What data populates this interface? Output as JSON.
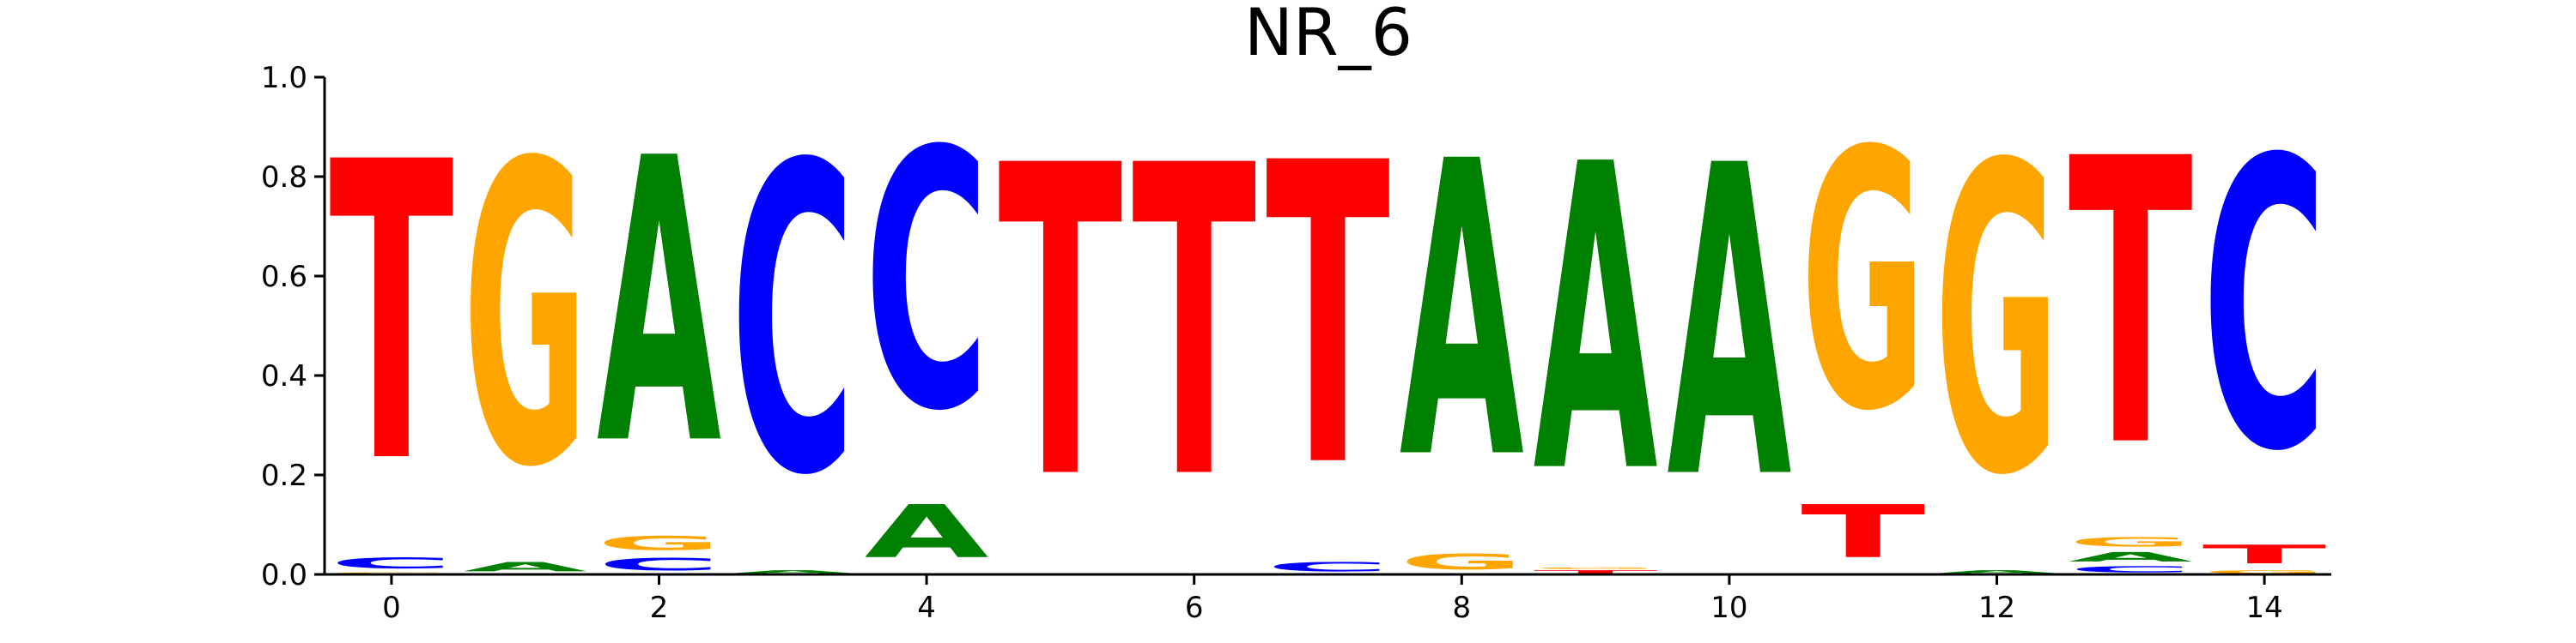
{
  "chart_data": {
    "type": "sequence-logo",
    "title": "NR_6",
    "xlabel": "",
    "ylabel": "",
    "xlim": [
      -0.5,
      14.5
    ],
    "ylim": [
      0,
      1
    ],
    "x_ticks": [
      0,
      2,
      4,
      6,
      8,
      10,
      12,
      14
    ],
    "y_ticks": [
      "0.0",
      "0.2",
      "0.4",
      "0.6",
      "0.8",
      "1.0"
    ],
    "grid": false,
    "legend": "none",
    "colors": {
      "A": "#008000",
      "C": "#0000ff",
      "G": "#ffa500",
      "T": "#ff0000"
    },
    "positions": [
      {
        "x": 0,
        "letters": [
          {
            "base": "G",
            "value": 0.005
          },
          {
            "base": "C",
            "value": 0.035
          },
          {
            "base": "T",
            "value": 0.96
          }
        ]
      },
      {
        "x": 1,
        "letters": [
          {
            "base": "A",
            "value": 0.03
          },
          {
            "base": "G",
            "value": 0.97
          }
        ]
      },
      {
        "x": 2,
        "letters": [
          {
            "base": "C",
            "value": 0.04
          },
          {
            "base": "G",
            "value": 0.045
          },
          {
            "base": "A",
            "value": 0.915
          }
        ]
      },
      {
        "x": 3,
        "letters": [
          {
            "base": "A",
            "value": 0.01
          },
          {
            "base": "C",
            "value": 0.99
          }
        ]
      },
      {
        "x": 4,
        "letters": [
          {
            "base": "A",
            "value": 0.17
          },
          {
            "base": "C",
            "value": 0.83
          }
        ]
      },
      {
        "x": 5,
        "letters": [
          {
            "base": "T",
            "value": 1.0
          }
        ]
      },
      {
        "x": 6,
        "letters": [
          {
            "base": "T",
            "value": 1.0
          }
        ]
      },
      {
        "x": 7,
        "letters": [
          {
            "base": "C",
            "value": 0.03
          },
          {
            "base": "T",
            "value": 0.97
          }
        ]
      },
      {
        "x": 8,
        "letters": [
          {
            "base": "G",
            "value": 0.05
          },
          {
            "base": "A",
            "value": 0.95
          }
        ]
      },
      {
        "x": 9,
        "letters": [
          {
            "base": "T",
            "value": 0.01
          },
          {
            "base": "G",
            "value": 0.005
          },
          {
            "base": "A",
            "value": 0.985
          }
        ]
      },
      {
        "x": 10,
        "letters": [
          {
            "base": "A",
            "value": 1.0
          }
        ]
      },
      {
        "x": 11,
        "letters": [
          {
            "base": "T",
            "value": 0.17
          },
          {
            "base": "G",
            "value": 0.83
          }
        ]
      },
      {
        "x": 12,
        "letters": [
          {
            "base": "A",
            "value": 0.01
          },
          {
            "base": "G",
            "value": 0.99
          }
        ]
      },
      {
        "x": 13,
        "letters": [
          {
            "base": "C",
            "value": 0.02
          },
          {
            "base": "A",
            "value": 0.03
          },
          {
            "base": "G",
            "value": 0.03
          },
          {
            "base": "T",
            "value": 0.92
          }
        ]
      },
      {
        "x": 14,
        "letters": [
          {
            "base": "G",
            "value": 0.01
          },
          {
            "base": "T",
            "value": 0.06
          },
          {
            "base": "C",
            "value": 0.93
          }
        ]
      }
    ]
  }
}
